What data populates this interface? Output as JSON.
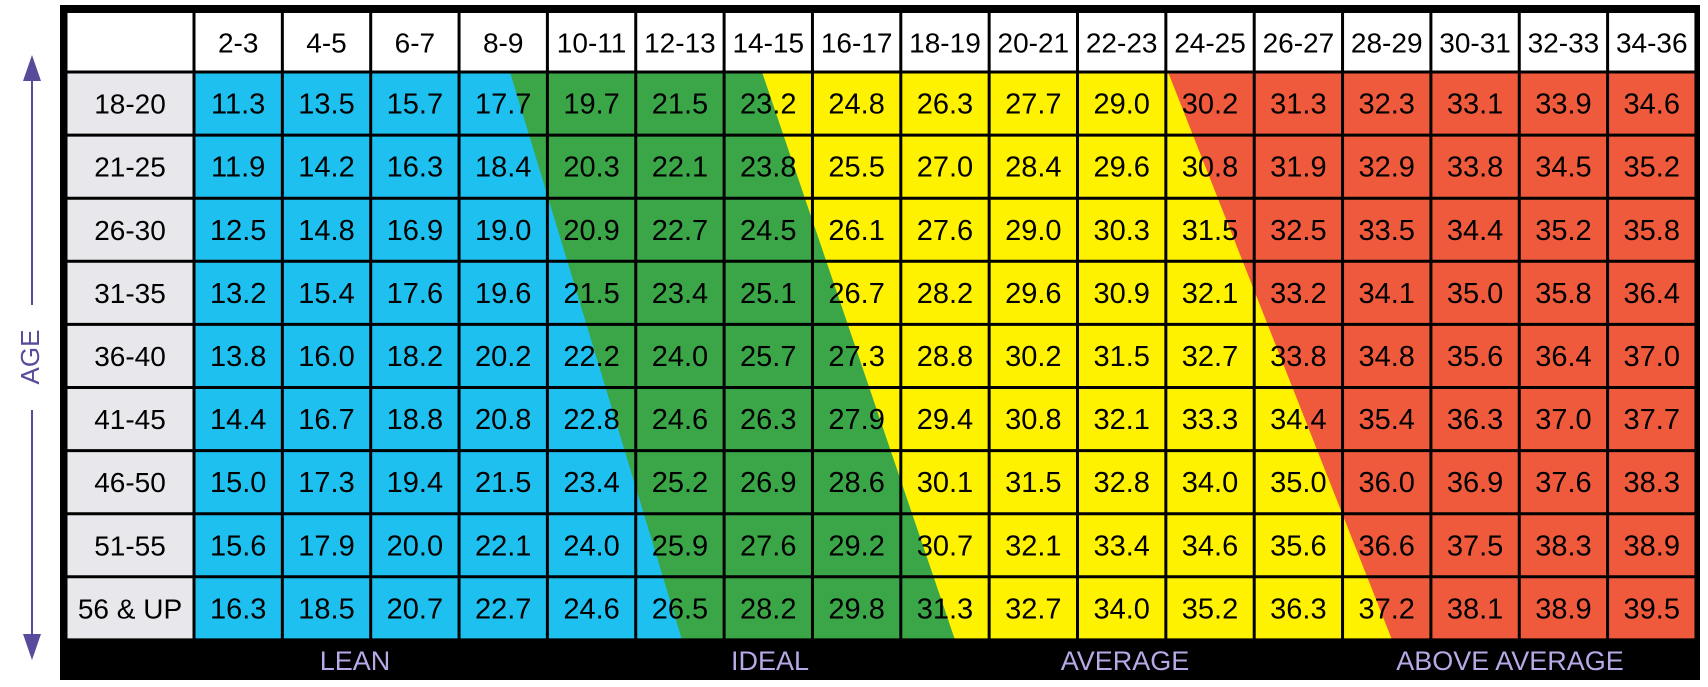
{
  "chart_data": {
    "type": "table",
    "axis_label": "AGE",
    "columns": [
      "2-3",
      "4-5",
      "6-7",
      "8-9",
      "10-11",
      "12-13",
      "14-15",
      "16-17",
      "18-19",
      "20-21",
      "22-23",
      "24-25",
      "26-27",
      "28-29",
      "30-31",
      "32-33",
      "34-36"
    ],
    "rows": [
      {
        "age": "18-20",
        "values": [
          "11.3",
          "13.5",
          "15.7",
          "17.7",
          "19.7",
          "21.5",
          "23.2",
          "24.8",
          "26.3",
          "27.7",
          "29.0",
          "30.2",
          "31.3",
          "32.3",
          "33.1",
          "33.9",
          "34.6"
        ]
      },
      {
        "age": "21-25",
        "values": [
          "11.9",
          "14.2",
          "16.3",
          "18.4",
          "20.3",
          "22.1",
          "23.8",
          "25.5",
          "27.0",
          "28.4",
          "29.6",
          "30.8",
          "31.9",
          "32.9",
          "33.8",
          "34.5",
          "35.2"
        ]
      },
      {
        "age": "26-30",
        "values": [
          "12.5",
          "14.8",
          "16.9",
          "19.0",
          "20.9",
          "22.7",
          "24.5",
          "26.1",
          "27.6",
          "29.0",
          "30.3",
          "31.5",
          "32.5",
          "33.5",
          "34.4",
          "35.2",
          "35.8"
        ]
      },
      {
        "age": "31-35",
        "values": [
          "13.2",
          "15.4",
          "17.6",
          "19.6",
          "21.5",
          "23.4",
          "25.1",
          "26.7",
          "28.2",
          "29.6",
          "30.9",
          "32.1",
          "33.2",
          "34.1",
          "35.0",
          "35.8",
          "36.4"
        ]
      },
      {
        "age": "36-40",
        "values": [
          "13.8",
          "16.0",
          "18.2",
          "20.2",
          "22.2",
          "24.0",
          "25.7",
          "27.3",
          "28.8",
          "30.2",
          "31.5",
          "32.7",
          "33.8",
          "34.8",
          "35.6",
          "36.4",
          "37.0"
        ]
      },
      {
        "age": "41-45",
        "values": [
          "14.4",
          "16.7",
          "18.8",
          "20.8",
          "22.8",
          "24.6",
          "26.3",
          "27.9",
          "29.4",
          "30.8",
          "32.1",
          "33.3",
          "34.4",
          "35.4",
          "36.3",
          "37.0",
          "37.7"
        ]
      },
      {
        "age": "46-50",
        "values": [
          "15.0",
          "17.3",
          "19.4",
          "21.5",
          "23.4",
          "25.2",
          "26.9",
          "28.6",
          "30.1",
          "31.5",
          "32.8",
          "34.0",
          "35.0",
          "36.0",
          "36.9",
          "37.6",
          "38.3"
        ]
      },
      {
        "age": "51-55",
        "values": [
          "15.6",
          "17.9",
          "20.0",
          "22.1",
          "24.0",
          "25.9",
          "27.6",
          "29.2",
          "30.7",
          "32.1",
          "33.4",
          "34.6",
          "35.6",
          "36.6",
          "37.5",
          "38.3",
          "38.9"
        ]
      },
      {
        "age": "56 & UP",
        "values": [
          "16.3",
          "18.5",
          "20.7",
          "22.7",
          "24.6",
          "26.5",
          "28.2",
          "29.8",
          "31.3",
          "32.7",
          "34.0",
          "35.2",
          "36.3",
          "37.2",
          "38.1",
          "38.9",
          "39.5"
        ]
      }
    ],
    "categories": [
      {
        "label": "LEAN",
        "color": "#1ec0ef"
      },
      {
        "label": "IDEAL",
        "color": "#3aa648"
      },
      {
        "label": "AVERAGE",
        "color": "#fff200"
      },
      {
        "label": "ABOVE AVERAGE",
        "color": "#f05a3c"
      }
    ],
    "header_background": "#ffffff",
    "age_column_background": "#e8e8ec",
    "grid": true
  }
}
